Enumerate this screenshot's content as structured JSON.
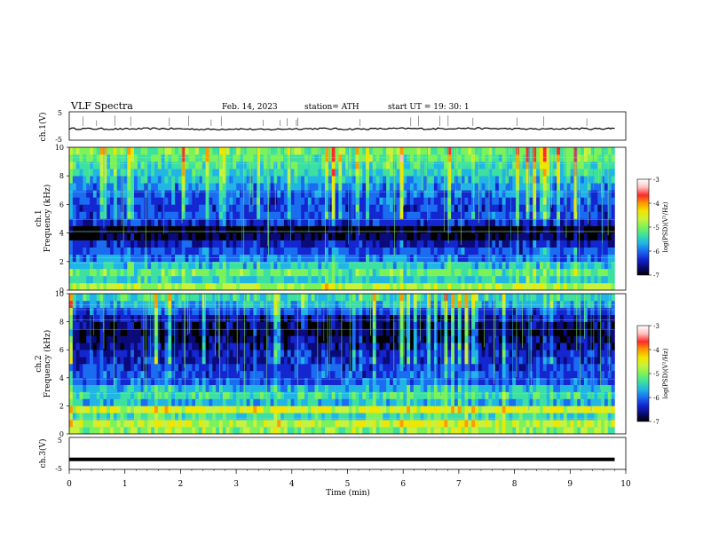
{
  "header": {
    "title": "VLF  Spectra",
    "date": "Feb. 14, 2023",
    "station": "station= ATH",
    "start": "start  UT  =    19: 30: 1"
  },
  "colors": {
    "spectrogram_scale": [
      "#000000",
      "#0a0a7a",
      "#1426d0",
      "#1a6cf0",
      "#21b5e6",
      "#3de0a0",
      "#7cf25a",
      "#c8f23c",
      "#f0e600",
      "#ff9a00",
      "#ff2a2a",
      "#ffc0c0",
      "#ffffff"
    ],
    "trace": "#000000"
  },
  "chart_data": [
    {
      "type": "line",
      "name": "ch1-waveform",
      "ylabel": "ch.1(V)",
      "ylim": [
        -5,
        5
      ],
      "yticks": [
        "5",
        "-5"
      ],
      "xlim": [
        0,
        10
      ],
      "x": [
        0,
        0.5,
        1,
        1.5,
        2,
        2.5,
        3,
        3.5,
        4,
        4.5,
        5,
        5.5,
        6,
        6.5,
        7,
        7.5,
        8,
        8.5,
        9,
        9.5,
        9.8
      ],
      "y": [
        -0.9,
        -1.0,
        -1.1,
        -0.9,
        -1.0,
        -1.2,
        -1.0,
        -1.3,
        -1.0,
        -0.9,
        -1.1,
        -1.0,
        -0.9,
        -1.0,
        -0.8,
        -0.9,
        -1.0,
        -1.1,
        -0.9,
        -1.0,
        -0.8
      ]
    },
    {
      "type": "heatmap",
      "name": "ch1-spectrogram",
      "ylabel": "Frequency  (kHz)",
      "channel_label": "ch.1",
      "xlim": [
        0,
        10
      ],
      "ylim": [
        0,
        10
      ],
      "yticks": [
        "0",
        "2",
        "4",
        "6",
        "8",
        "10"
      ],
      "colorbar": {
        "label": "log(PSD)(V²/Hz)",
        "ticks": [
          "-3",
          "-4",
          "-5",
          "-6",
          "-7"
        ],
        "range": [
          -7,
          -3
        ]
      },
      "freq_bands_khz": [
        0.5,
        1.0,
        1.5,
        2.0,
        2.5,
        3.0,
        3.5,
        4.0,
        4.5,
        5.0,
        5.5,
        6.0,
        6.5,
        7.0,
        7.5,
        8.0,
        8.5,
        9.0,
        9.5,
        10.0
      ],
      "band_level_log_psd": [
        -4.6,
        -5.3,
        -5.0,
        -5.4,
        -5.8,
        -6.0,
        -6.3,
        -6.7,
        -6.9,
        -6.2,
        -6.0,
        -6.1,
        -6.0,
        -5.9,
        -5.7,
        -5.5,
        -5.3,
        -5.2,
        -5.0,
        -4.9
      ]
    },
    {
      "type": "heatmap",
      "name": "ch2-spectrogram",
      "ylabel": "Frequency  (kHz)",
      "channel_label": "ch.2",
      "xlim": [
        0,
        10
      ],
      "ylim": [
        0,
        10
      ],
      "yticks": [
        "0",
        "2",
        "4",
        "6",
        "8",
        "10"
      ],
      "colorbar": {
        "label": "log(PSD)(V²/Hz)",
        "ticks": [
          "-3",
          "-4",
          "-5",
          "-6",
          "-7"
        ],
        "range": [
          -7,
          -3
        ]
      },
      "freq_bands_khz": [
        0.5,
        1.0,
        1.5,
        2.0,
        2.5,
        3.0,
        3.5,
        4.0,
        4.5,
        5.0,
        5.5,
        6.0,
        6.5,
        7.0,
        7.5,
        8.0,
        8.5,
        9.0,
        9.5,
        10.0
      ],
      "band_level_log_psd": [
        -4.8,
        -4.5,
        -5.2,
        -4.4,
        -5.5,
        -5.2,
        -5.5,
        -5.9,
        -6.0,
        -6.1,
        -6.2,
        -6.3,
        -6.4,
        -6.6,
        -6.7,
        -6.6,
        -6.4,
        -6.0,
        -5.5,
        -5.3
      ]
    },
    {
      "type": "line",
      "name": "ch3-waveform",
      "ylabel": "ch.3(V)",
      "ylim": [
        -5,
        5
      ],
      "yticks": [
        "5",
        "-5"
      ],
      "xlim": [
        0,
        10
      ],
      "x": [
        0,
        9.8
      ],
      "y": [
        -1.9,
        -1.9
      ]
    }
  ],
  "xaxis": {
    "label": "Time  (min)",
    "ticks": [
      "0",
      "1",
      "2",
      "3",
      "4",
      "5",
      "6",
      "7",
      "8",
      "9",
      "10"
    ]
  }
}
